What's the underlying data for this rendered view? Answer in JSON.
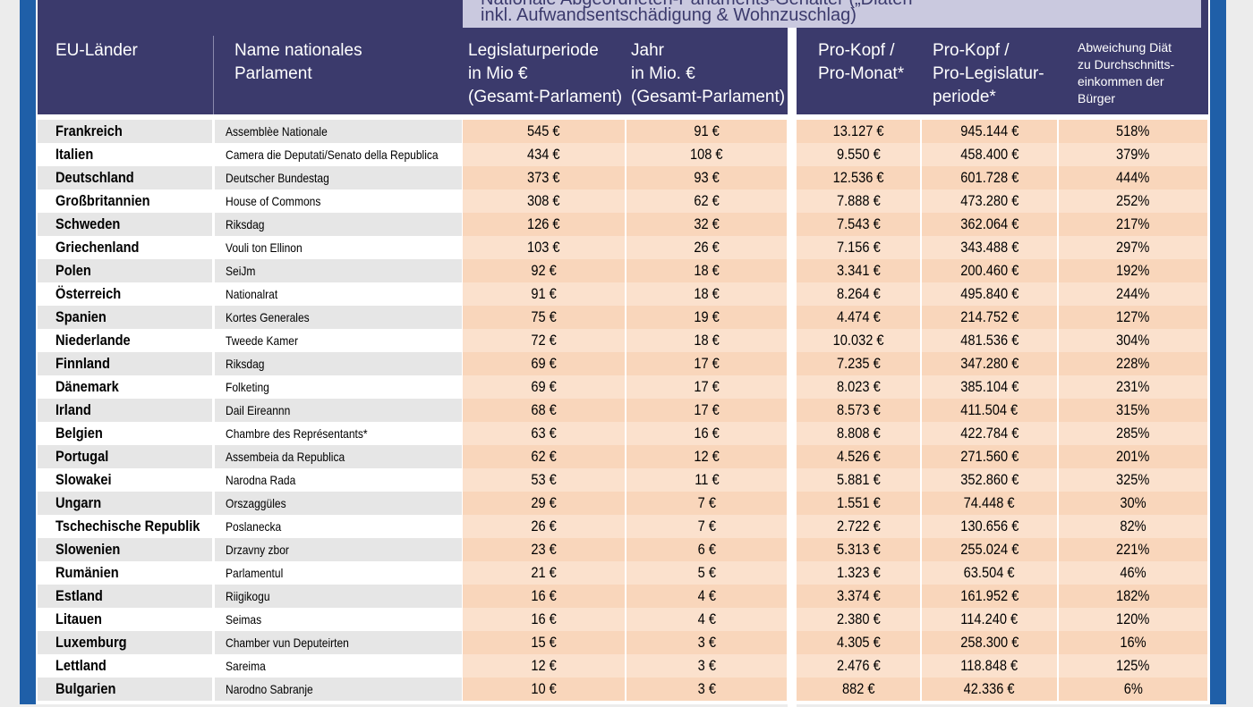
{
  "table": {
    "banner": [
      "Nationale Abgeordneten-Parlaments-Gehälter („Diäten",
      "inkl. Aufwandsentschädigung & Wohnzuschlag)"
    ],
    "headers": [
      [
        "EU-Länder"
      ],
      [
        "Name nationales",
        "Parlament"
      ],
      [
        "Legislaturperiode",
        "in Mio €",
        "(Gesamt-Parlament)"
      ],
      [
        "Jahr",
        "in Mio. €",
        "(Gesamt-Parlament)"
      ],
      [
        "Pro-Kopf /",
        "Pro-Monat*"
      ],
      [
        "Pro-Kopf /",
        "Pro-Legislatur-",
        "periode*"
      ],
      [
        "Abweichung Diät",
        "zu Durchschnitts-",
        "einkommen der",
        "Bürger"
      ]
    ],
    "rows": [
      [
        "Frankreich",
        "Assemblèe Nationale",
        "545 €",
        "91 €",
        "13.127 €",
        "945.144 €",
        "518%"
      ],
      [
        "Italien",
        "Camera die Deputati/Senato della Republica",
        "434 €",
        "108 €",
        "9.550 €",
        "458.400 €",
        "379%"
      ],
      [
        "Deutschland",
        "Deutscher Bundestag",
        "373 €",
        "93 €",
        "12.536 €",
        "601.728 €",
        "444%"
      ],
      [
        "Großbritannien",
        "House of Commons",
        "308 €",
        "62 €",
        "7.888 €",
        "473.280 €",
        "252%"
      ],
      [
        "Schweden",
        "Riksdag",
        "126 €",
        "32 €",
        "7.543 €",
        "362.064 €",
        "217%"
      ],
      [
        "Griechenland",
        "Vouli ton Ellinon",
        "103 €",
        "26 €",
        "7.156 €",
        "343.488 €",
        "297%"
      ],
      [
        "Polen",
        "SeiJm",
        "92 €",
        "18 €",
        "3.341 €",
        "200.460 €",
        "192%"
      ],
      [
        "Österreich",
        "Nationalrat",
        "91 €",
        "18 €",
        "8.264 €",
        "495.840 €",
        "244%"
      ],
      [
        "Spanien",
        "Kortes Generales",
        "75 €",
        "19 €",
        "4.474 €",
        "214.752 €",
        "127%"
      ],
      [
        "Niederlande",
        "Tweede Kamer",
        "72 €",
        "18 €",
        "10.032 €",
        "481.536 €",
        "304%"
      ],
      [
        "Finnland",
        "Riksdag",
        "69 €",
        "17 €",
        "7.235 €",
        "347.280 €",
        "228%"
      ],
      [
        "Dänemark",
        "Folketing",
        "69 €",
        "17 €",
        "8.023 €",
        "385.104 €",
        "231%"
      ],
      [
        "Irland",
        "Dail Eireannn",
        "68 €",
        "17 €",
        "8.573 €",
        "411.504 €",
        "315%"
      ],
      [
        "Belgien",
        "Chambre des Représentants*",
        "63 €",
        "16 €",
        "8.808 €",
        "422.784 €",
        "285%"
      ],
      [
        "Portugal",
        "Assembeia da Republica",
        "62 €",
        "12 €",
        "4.526 €",
        "271.560 €",
        "201%"
      ],
      [
        "Slowakei",
        "Narodna Rada",
        "53 €",
        "11 €",
        "5.881 €",
        "352.860 €",
        "325%"
      ],
      [
        "Ungarn",
        "Orszaggüles",
        "29 €",
        "7 €",
        "1.551 €",
        "74.448 €",
        "30%"
      ],
      [
        "Tschechische Republik",
        "Poslanecka",
        "26 €",
        "7 €",
        "2.722 €",
        "130.656 €",
        "82%"
      ],
      [
        "Slowenien",
        "Drzavny zbor",
        "23 €",
        "6 €",
        "5.313 €",
        "255.024 €",
        "221%"
      ],
      [
        "Rumänien",
        "Parlamentul",
        "21 €",
        "5 €",
        "1.323 €",
        "63.504 €",
        "46%"
      ],
      [
        "Estland",
        "Riigikogu",
        "16 €",
        "4 €",
        "3.374 €",
        "161.952 €",
        "182%"
      ],
      [
        "Litauen",
        "Seimas",
        "16 €",
        "4 €",
        "2.380 €",
        "114.240 €",
        "120%"
      ],
      [
        "Luxemburg",
        "Chamber vun Deputeirten",
        "15 €",
        "3 €",
        "4.305 €",
        "258.300 €",
        "16%"
      ],
      [
        "Lettland",
        "Sareima",
        "12 €",
        "3 €",
        "2.476 €",
        "118.848 €",
        "125%"
      ],
      [
        "Bulgarien",
        "Narodno  Sabranje",
        "10 €",
        "3 €",
        "882 €",
        "42.336 €",
        "6%"
      ]
    ]
  }
}
